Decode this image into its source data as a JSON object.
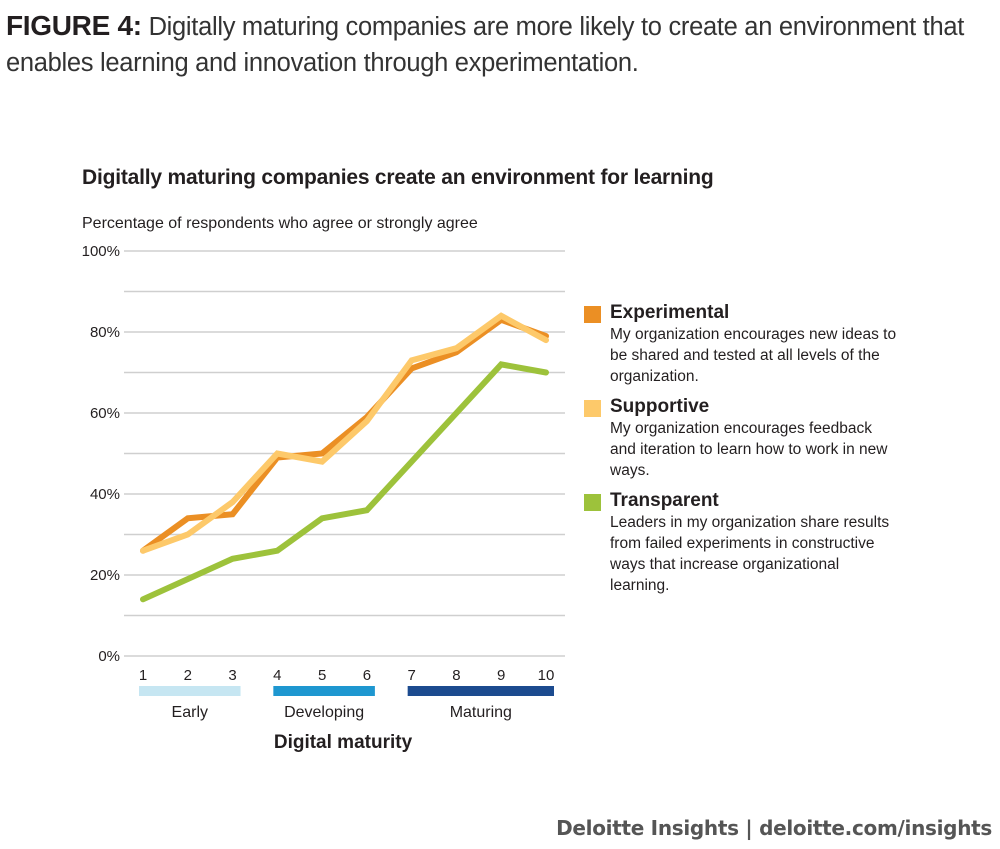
{
  "figure": {
    "lead": "FIGURE 4:",
    "caption": "Digitally maturing companies are more likely to create an environment that enables learning and innovation through experimentation."
  },
  "chart_data": {
    "type": "line",
    "title": "Digitally maturing companies create an environment for learning",
    "subtitle": "Percentage of respondents who agree or strongly agree",
    "xlabel": "Digital maturity",
    "ylabel": "",
    "x": [
      1,
      2,
      3,
      4,
      5,
      6,
      7,
      8,
      9,
      10
    ],
    "x_tick_labels": [
      "1",
      "2",
      "3",
      "4",
      "5",
      "6",
      "7",
      "8",
      "9",
      "10"
    ],
    "ylim": [
      0,
      100
    ],
    "y_ticks": [
      0,
      20,
      40,
      60,
      80,
      100
    ],
    "y_tick_labels": [
      "0%",
      "20%",
      "40%",
      "60%",
      "80%",
      "100%"
    ],
    "grid": true,
    "grid_step": 10,
    "legend_position": "right",
    "maturity_bands": [
      {
        "label": "Early",
        "from": 1,
        "to": 3,
        "color": "#c6e6f2"
      },
      {
        "label": "Developing",
        "from": 4,
        "to": 6,
        "color": "#1e97d0"
      },
      {
        "label": "Maturing",
        "from": 7,
        "to": 10,
        "color": "#1c4b8f"
      }
    ],
    "series": [
      {
        "name": "Experimental",
        "description": "My organization encourages new ideas to be shared and tested at all levels of the organization.",
        "color": "#eb8f24",
        "values": [
          26,
          34,
          35,
          49,
          50,
          59,
          71,
          75,
          83,
          79
        ]
      },
      {
        "name": "Supportive",
        "description": "My organization encourages feedback and iteration to learn how to work in new ways.",
        "color": "#fdc96a",
        "values": [
          26,
          30,
          38,
          50,
          48,
          58,
          73,
          76,
          84,
          78
        ]
      },
      {
        "name": "Transparent",
        "description": "Leaders in my organization share results from failed experiments in constructive ways that increase organizational learning.",
        "color": "#9dc23b",
        "values": [
          14,
          19,
          24,
          26,
          34,
          36,
          48,
          60,
          72,
          70
        ]
      }
    ]
  },
  "footer": {
    "text": "Deloitte Insights | deloitte.com/insights"
  }
}
